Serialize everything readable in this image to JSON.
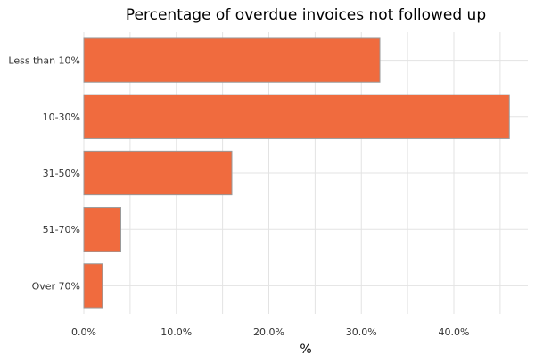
{
  "chart_data": {
    "type": "bar",
    "orientation": "horizontal",
    "title": "Percentage of overdue invoices not followed up",
    "xlabel": "%",
    "ylabel": "",
    "categories": [
      "Less than 10%",
      "10-30%",
      "31-50%",
      "51-70%",
      "Over 70%"
    ],
    "values": [
      32,
      46,
      16,
      4,
      2
    ],
    "xlim": [
      0,
      48
    ],
    "xticks": [
      0,
      10,
      20,
      30,
      40
    ],
    "xtick_labels": [
      "0.0%",
      "10.0%",
      "20.0%",
      "30.0%",
      "40.0%"
    ],
    "grid": true,
    "legend": "none",
    "colors": {
      "bar": "#f06b3e",
      "bar_edge": "#9a9a9a",
      "grid": "#e3e3e3"
    }
  }
}
